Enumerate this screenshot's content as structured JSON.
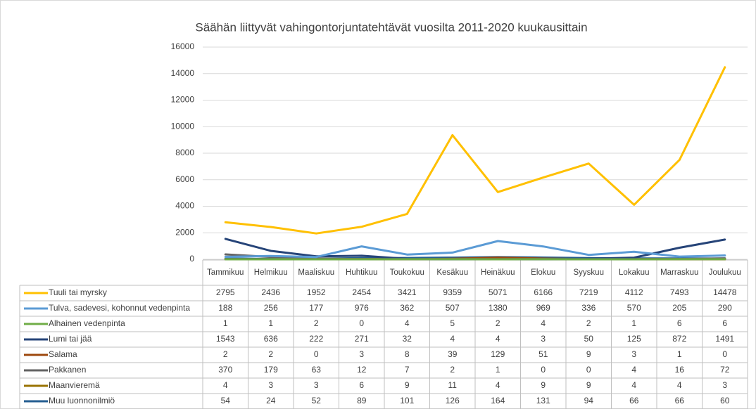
{
  "chart_data": {
    "type": "line",
    "title": "Säähän liittyvät vahingontorjuntatehtävät vuosilta 2011-2020 kuukausittain",
    "categories": [
      "Tammikuu",
      "Helmikuu",
      "Maaliskuu",
      "Huhtikuu",
      "Toukokuu",
      "Kesäkuu",
      "Heinäkuu",
      "Elokuu",
      "Syyskuu",
      "Lokakuu",
      "Marraskuu",
      "Joulukuu"
    ],
    "series": [
      {
        "name": "Tuuli tai myrsky",
        "color": "#ffc000",
        "values": [
          2795,
          2436,
          1952,
          2454,
          3421,
          9359,
          5071,
          6166,
          7219,
          4112,
          7493,
          14478
        ]
      },
      {
        "name": "Tulva, sadevesi, kohonnut vedenpinta",
        "color": "#5b9bd5",
        "values": [
          188,
          256,
          177,
          976,
          362,
          507,
          1380,
          969,
          336,
          570,
          205,
          290
        ]
      },
      {
        "name": "Alhainen vedenpinta",
        "color": "#70ad47",
        "values": [
          1,
          1,
          2,
          0,
          4,
          5,
          2,
          4,
          2,
          1,
          6,
          6
        ]
      },
      {
        "name": "Lumi tai jää",
        "color": "#264478",
        "values": [
          1543,
          636,
          222,
          271,
          32,
          4,
          4,
          3,
          50,
          125,
          872,
          1491
        ]
      },
      {
        "name": "Salama",
        "color": "#9e480e",
        "values": [
          2,
          2,
          0,
          3,
          8,
          39,
          129,
          51,
          9,
          3,
          1,
          0
        ]
      },
      {
        "name": "Pakkanen",
        "color": "#636363",
        "values": [
          370,
          179,
          63,
          12,
          7,
          2,
          1,
          0,
          0,
          4,
          16,
          72
        ]
      },
      {
        "name": "Maanvieremä",
        "color": "#997300",
        "values": [
          4,
          3,
          3,
          6,
          9,
          11,
          4,
          9,
          9,
          4,
          4,
          3
        ]
      },
      {
        "name": "Muu luonnonilmiö",
        "color": "#255e91",
        "values": [
          54,
          24,
          52,
          89,
          101,
          126,
          164,
          131,
          94,
          66,
          66,
          60
        ]
      }
    ],
    "ylim": [
      0,
      16000
    ],
    "yticks": [
      0,
      2000,
      4000,
      6000,
      8000,
      10000,
      12000,
      14000,
      16000
    ],
    "grid": true
  }
}
